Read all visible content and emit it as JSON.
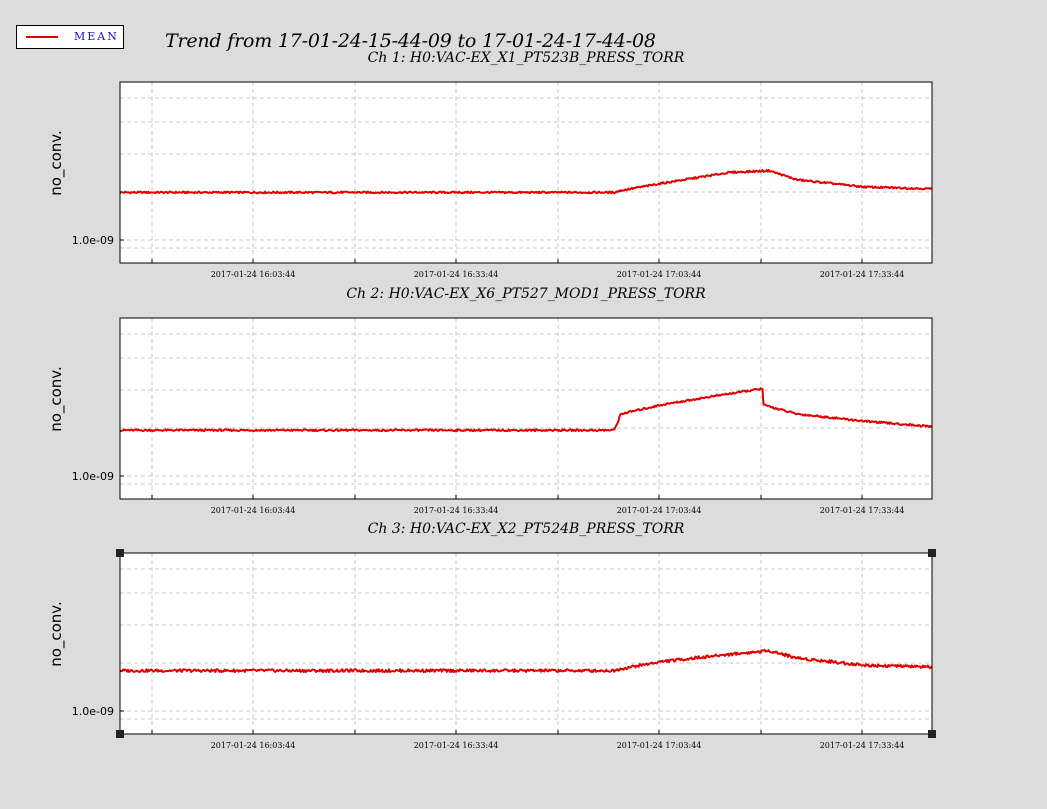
{
  "legend": {
    "label": "MEAN",
    "color": "#e00000"
  },
  "title": "Trend from 17-01-24-15-44-09 to 17-01-24-17-44-08",
  "colors": {
    "background": "#dcdcdc",
    "plot_bg": "#ffffff",
    "grid": "#c8c8c8",
    "series": "#e00000"
  },
  "chart_data": [
    {
      "type": "line",
      "title": "Ch 1: H0:VAC-EX_X1_PT523B_PRESS_TORR",
      "ylabel": "no_conv.",
      "ytick_labels": [
        "1.0e-09"
      ],
      "xtick_labels": [
        "2017-01-24 16:03:44",
        "2017-01-24 16:33:44",
        "2017-01-24 17:03:44",
        "2017-01-24 17:33:44"
      ],
      "x_unit": "minutes from 15:44:09",
      "xlim": [
        0,
        120
      ],
      "ylim": [
        0,
        1
      ],
      "grid": true,
      "series": [
        {
          "name": "MEAN",
          "x": [
            0,
            30,
            60,
            73,
            74,
            80,
            90,
            96,
            100,
            110,
            120
          ],
          "y": [
            0.39,
            0.39,
            0.39,
            0.39,
            0.4,
            0.44,
            0.5,
            0.51,
            0.46,
            0.42,
            0.41
          ]
        }
      ],
      "noise": 0.005
    },
    {
      "type": "line",
      "title": "Ch 2: H0:VAC-EX_X6_PT527_MOD1_PRESS_TORR",
      "ylabel": "no_conv.",
      "ytick_labels": [
        "1.0e-09"
      ],
      "xtick_labels": [
        "2017-01-24 16:03:44",
        "2017-01-24 16:33:44",
        "2017-01-24 17:03:44",
        "2017-01-24 17:33:44"
      ],
      "x_unit": "minutes from 15:44:09",
      "xlim": [
        0,
        120
      ],
      "ylim": [
        0,
        1
      ],
      "grid": true,
      "series": [
        {
          "name": "MEAN",
          "x": [
            0,
            30,
            60,
            73,
            73.5,
            74,
            80,
            88,
            95,
            95.1,
            97,
            100,
            110,
            120
          ],
          "y": [
            0.38,
            0.38,
            0.38,
            0.38,
            0.42,
            0.47,
            0.52,
            0.57,
            0.61,
            0.52,
            0.5,
            0.47,
            0.43,
            0.4
          ]
        }
      ],
      "noise": 0.005
    },
    {
      "type": "line",
      "title": "Ch 3: H0:VAC-EX_X2_PT524B_PRESS_TORR",
      "ylabel": "no_conv.",
      "ytick_labels": [
        "1.0e-09"
      ],
      "xtick_labels": [
        "2017-01-24 16:03:44",
        "2017-01-24 16:33:44",
        "2017-01-24 17:03:44",
        "2017-01-24 17:33:44"
      ],
      "x_unit": "minutes from 15:44:09",
      "xlim": [
        0,
        120
      ],
      "ylim": [
        0,
        1
      ],
      "grid": true,
      "selected": true,
      "series": [
        {
          "name": "MEAN",
          "x": [
            0,
            30,
            60,
            73,
            74,
            80,
            90,
            96,
            100,
            110,
            120
          ],
          "y": [
            0.35,
            0.35,
            0.35,
            0.35,
            0.36,
            0.4,
            0.44,
            0.46,
            0.42,
            0.38,
            0.37
          ]
        }
      ],
      "noise": 0.008
    }
  ]
}
